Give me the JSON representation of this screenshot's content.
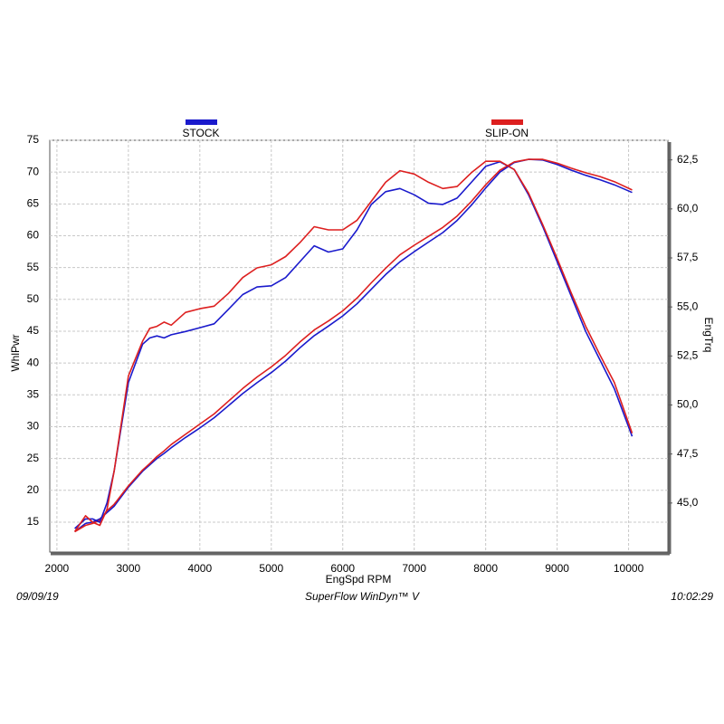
{
  "chart_data": {
    "type": "line",
    "xlabel": "EngSpd  RPM",
    "ylabel": "WhlPwr",
    "y2label": "EngTrq",
    "footer_left": "09/09/19",
    "footer_center": "SuperFlow WinDyn™ V",
    "footer_right": "10:02:29",
    "grid": true,
    "x": [
      2250,
      2400,
      2500,
      2600,
      2700,
      2800,
      3000,
      3200,
      3300,
      3400,
      3500,
      3600,
      3800,
      4000,
      4200,
      4400,
      4600,
      4800,
      5000,
      5200,
      5400,
      5600,
      5800,
      6000,
      6200,
      6400,
      6600,
      6800,
      7000,
      7200,
      7400,
      7600,
      7800,
      8000,
      8200,
      8400,
      8600,
      8800,
      9000,
      9200,
      9400,
      9600,
      9800,
      10050
    ],
    "xlim": [
      1900,
      10550
    ],
    "xticks": [
      2000,
      3000,
      4000,
      5000,
      6000,
      7000,
      8000,
      9000,
      10000
    ],
    "ylim": [
      10.3,
      75
    ],
    "yticks": [
      15,
      20,
      25,
      30,
      35,
      40,
      45,
      50,
      55,
      60,
      65,
      70,
      75
    ],
    "y2lim": [
      42.5,
      63.5
    ],
    "y2ticks": [
      {
        "value": 45,
        "label": "45,0"
      },
      {
        "value": 47.5,
        "label": "47,5"
      },
      {
        "value": 50,
        "label": "50,0"
      },
      {
        "value": 52.5,
        "label": "52,5"
      },
      {
        "value": 55,
        "label": "55,0"
      },
      {
        "value": 57.5,
        "label": "57,5"
      },
      {
        "value": 60,
        "label": "60,0"
      },
      {
        "value": 62.5,
        "label": "62,5"
      }
    ],
    "series": [
      {
        "name": "STOCK",
        "color": "#1a1acc",
        "values": [
          13.5,
          14.8,
          15,
          15.5,
          16.5,
          17.5,
          20.5,
          23,
          24,
          25,
          25.8,
          26.7,
          28.3,
          29.8,
          31.4,
          33.3,
          35.2,
          36.9,
          38.5,
          40.3,
          42.4,
          44.3,
          45.8,
          47.4,
          49.3,
          51.6,
          53.9,
          55.9,
          57.5,
          59,
          60.5,
          62.4,
          64.8,
          67.5,
          70,
          71.5,
          72,
          71.9,
          71.2,
          70.3,
          69.5,
          68.8,
          68,
          66.8
        ]
      },
      {
        "name": "SLIP-ON",
        "color": "#dd1f1f",
        "values": [
          13.5,
          14.5,
          14.8,
          15.3,
          16.8,
          17.8,
          20.7,
          23.2,
          24.2,
          25.3,
          26.2,
          27.2,
          28.8,
          30.4,
          32,
          34,
          36,
          37.8,
          39.4,
          41.2,
          43.3,
          45.2,
          46.6,
          48.2,
          50.2,
          52.6,
          54.9,
          57,
          58.5,
          59.9,
          61.3,
          63.1,
          65.4,
          68,
          70.3,
          71.6,
          72,
          72,
          71.4,
          70.6,
          69.9,
          69.3,
          68.5,
          67.2
        ]
      },
      {
        "name": "STOCK",
        "color": "#1a1acc",
        "axis": "y2",
        "values": [
          43.7,
          44.19,
          44.19,
          44.02,
          45,
          46.62,
          51.15,
          53.1,
          53.42,
          53.52,
          53.42,
          53.58,
          53.75,
          53.94,
          54.14,
          54.88,
          55.63,
          56.02,
          56.08,
          56.5,
          57.31,
          58.12,
          57.8,
          57.96,
          58.93,
          60.23,
          60.88,
          61.04,
          60.72,
          60.29,
          60.23,
          60.55,
          61.36,
          62.17,
          62.4,
          62.01,
          60.72,
          59.09,
          57.31,
          55.53,
          53.75,
          52.29,
          50.83,
          48.4
        ]
      },
      {
        "name": "SLIP-ON",
        "color": "#dd1f1f",
        "axis": "y2",
        "values": [
          43.54,
          44.35,
          44.02,
          43.86,
          44.67,
          46.62,
          51.48,
          53.26,
          53.91,
          54.01,
          54.23,
          54.07,
          54.72,
          54.91,
          55.04,
          55.69,
          56.5,
          56.99,
          57.15,
          57.57,
          58.28,
          59.09,
          58.93,
          58.93,
          59.42,
          60.39,
          61.36,
          61.95,
          61.78,
          61.36,
          61.04,
          61.14,
          61.85,
          62.43,
          62.43,
          62.01,
          60.81,
          59.19,
          57.47,
          55.69,
          54.01,
          52.55,
          51.15,
          48.56
        ]
      }
    ]
  }
}
